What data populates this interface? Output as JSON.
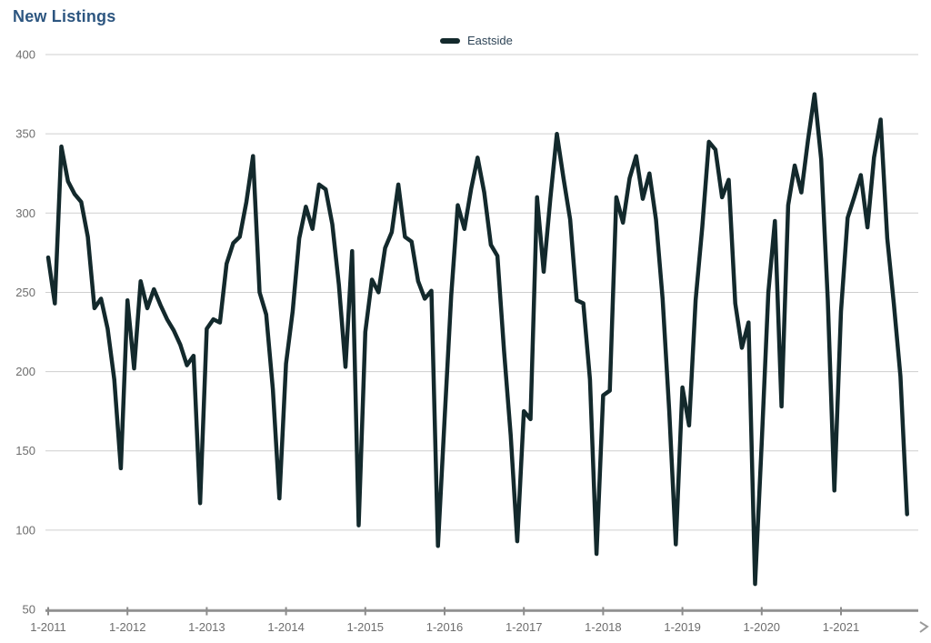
{
  "title": "New Listings",
  "legend": {
    "label": "Eastside"
  },
  "chart_data": {
    "type": "line",
    "title": "New Listings",
    "xlabel": "",
    "ylabel": "",
    "ylim": [
      50,
      400
    ],
    "y_ticks": [
      400,
      350,
      300,
      250,
      200,
      150,
      100,
      50
    ],
    "x_tick_labels": [
      "1-2011",
      "1-2012",
      "1-2013",
      "1-2014",
      "1-2015",
      "1-2016",
      "1-2017",
      "1-2018",
      "1-2019",
      "1-2020",
      "1-2021"
    ],
    "grid": "horizontal-only",
    "legend_position": "top-center",
    "line_color": "#13292c",
    "grid_color": "#cfcfcf",
    "axis_color": "#8c8c8c",
    "label_color": "#6d6d6d",
    "series": [
      {
        "name": "Eastside",
        "start": "1-2011",
        "interval": "monthly",
        "end": "11-2021",
        "values": [
          272,
          243,
          342,
          320,
          312,
          307,
          285,
          240,
          246,
          227,
          195,
          139,
          245,
          202,
          257,
          240,
          252,
          242,
          233,
          226,
          217,
          204,
          210,
          117,
          227,
          233,
          231,
          268,
          281,
          285,
          307,
          336,
          250,
          236,
          189,
          120,
          205,
          238,
          284,
          304,
          290,
          318,
          315,
          293,
          255,
          203,
          276,
          103,
          225,
          258,
          250,
          278,
          288,
          318,
          285,
          282,
          257,
          246,
          251,
          90,
          170,
          248,
          305,
          290,
          315,
          335,
          313,
          280,
          273,
          213,
          160,
          93,
          175,
          170,
          310,
          263,
          309,
          350,
          322,
          296,
          245,
          243,
          195,
          85,
          185,
          188,
          310,
          294,
          322,
          336,
          309,
          325,
          296,
          246,
          175,
          91,
          190,
          166,
          245,
          291,
          345,
          340,
          310,
          321,
          243,
          215,
          231,
          66,
          155,
          250,
          295,
          178,
          305,
          330,
          313,
          346,
          375,
          334,
          245,
          125,
          238,
          297,
          310,
          324,
          291,
          335,
          359,
          284,
          243,
          197,
          110
        ]
      }
    ]
  }
}
